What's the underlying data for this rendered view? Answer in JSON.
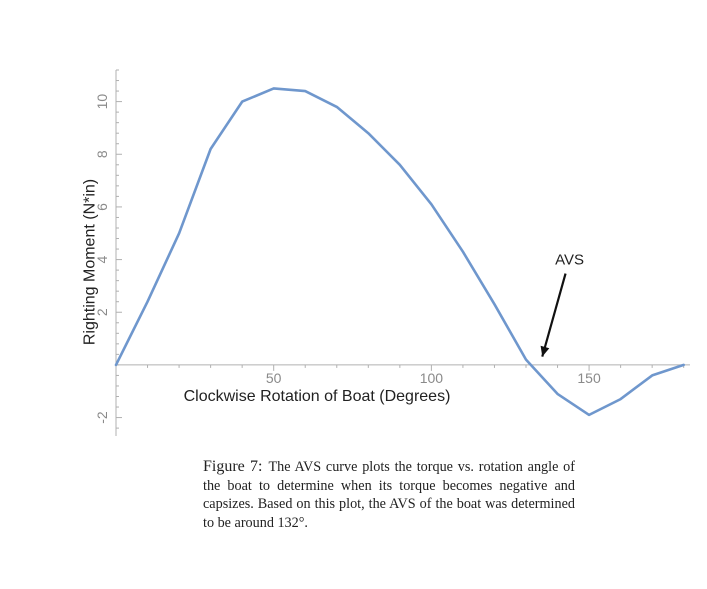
{
  "chart_data": {
    "type": "line",
    "series": [
      {
        "name": "Righting Moment",
        "color": "#6f97cd",
        "x": [
          0,
          10,
          20,
          30,
          40,
          50,
          60,
          70,
          80,
          90,
          100,
          110,
          120,
          130,
          140,
          150,
          160,
          170,
          180
        ],
        "y": [
          0.0,
          2.4,
          5.0,
          8.2,
          10.0,
          10.5,
          10.4,
          9.8,
          8.8,
          7.6,
          6.1,
          4.3,
          2.3,
          0.2,
          -1.1,
          -1.9,
          -1.3,
          -0.4,
          0.0
        ]
      }
    ],
    "xlabel": "Clockwise Rotation of Boat (Degrees)",
    "ylabel": "Righting Moment (N*in)",
    "xlim": [
      0,
      182
    ],
    "ylim": [
      -2.7,
      11.2
    ],
    "xticks": [
      50,
      100,
      150
    ],
    "xtick_labels": [
      "50",
      "100",
      "150"
    ],
    "yticks": [
      -2,
      2,
      4,
      6,
      8,
      10
    ],
    "ytick_labels": [
      "-2",
      "2",
      "4",
      "6",
      "8",
      "10"
    ],
    "x_minor_step": 10,
    "y_minor_step": 0.4,
    "annotation": {
      "text": "AVS",
      "arrow_to_x": 135,
      "arrow_to_y": 0.2,
      "text_x": 140,
      "text_y": 4
    }
  },
  "caption": {
    "label": "Figure 7:",
    "text": "The AVS curve plots the torque vs. rotation angle of the boat to determine when its torque becomes negative and capsizes. Based on this plot, the AVS of the boat was determined to be around 132°."
  }
}
